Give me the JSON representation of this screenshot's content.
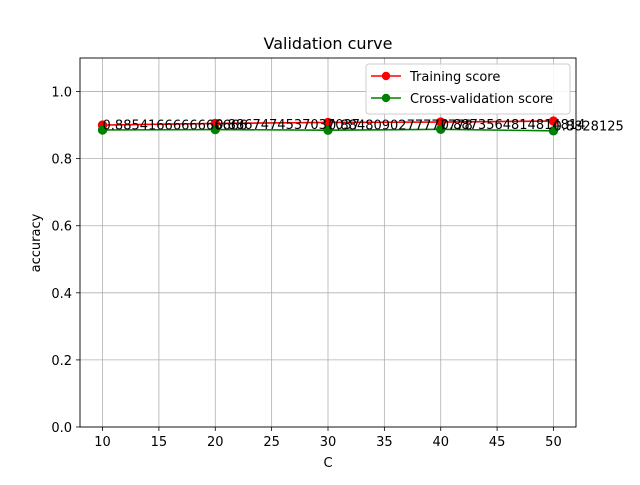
{
  "chart_data": {
    "type": "line",
    "title": "Validation curve",
    "xlabel": "C",
    "ylabel": "accuracy",
    "xlim": [
      8,
      52
    ],
    "ylim": [
      0.0,
      1.1
    ],
    "xticks": [
      10,
      15,
      20,
      25,
      30,
      35,
      40,
      45,
      50
    ],
    "yticks": [
      0.0,
      0.2,
      0.4,
      0.6,
      0.8,
      1.0
    ],
    "grid": true,
    "legend_position": "top-right",
    "x": [
      10,
      20,
      30,
      40,
      50
    ],
    "series": [
      {
        "name": "Training score",
        "color": "#ff0000",
        "values": [
          0.9,
          0.905,
          0.908,
          0.909,
          0.912
        ]
      },
      {
        "name": "Cross-validation score",
        "color": "#008000",
        "values": [
          0.8854166666666666,
          0.8867474537037037,
          0.8848090277777778,
          0.8873564814814814,
          0.8828125
        ]
      }
    ],
    "point_labels": [
      "0.8854166666666666",
      "0.8867474537037037",
      "0.8848090277777778",
      "0.8873564814814814",
      "0.8828125"
    ]
  }
}
